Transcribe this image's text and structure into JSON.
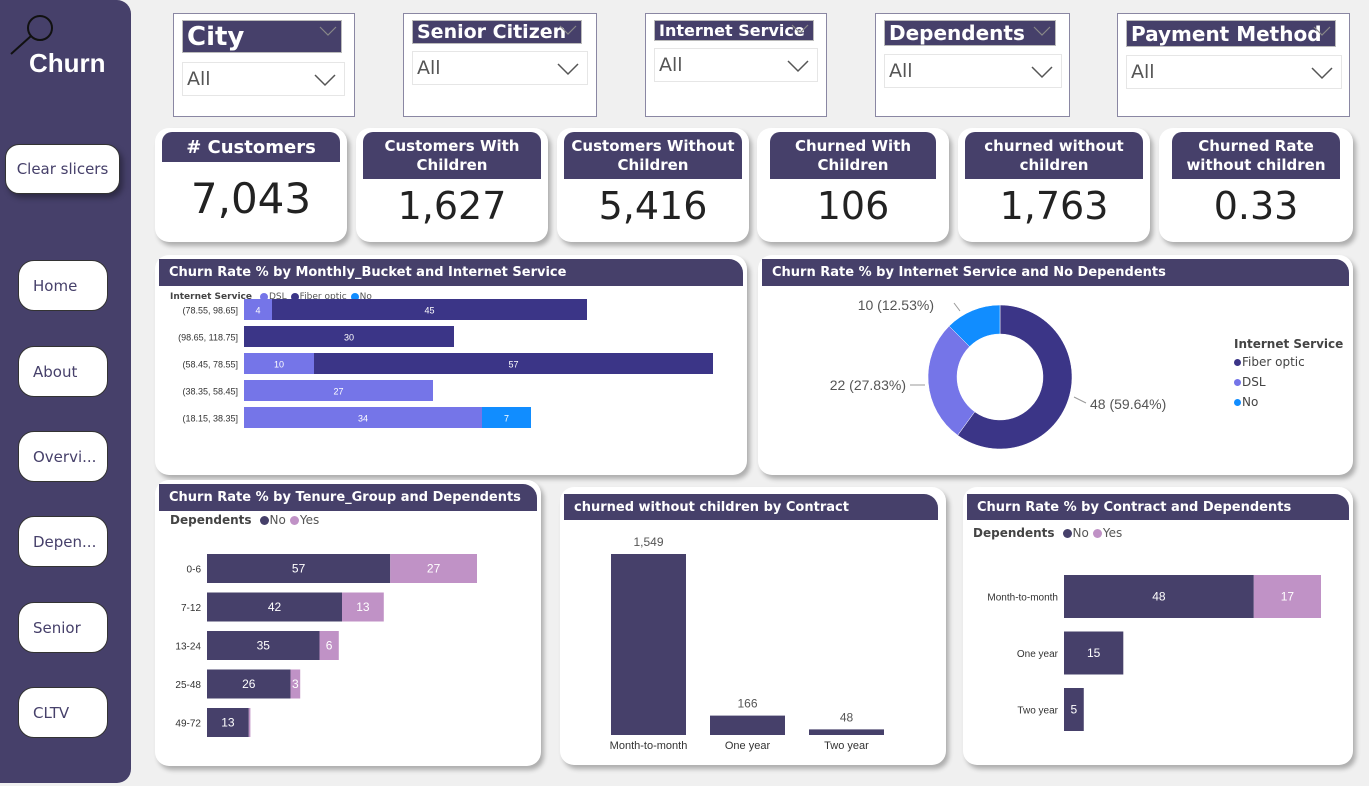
{
  "sidebar": {
    "title": "Churn",
    "clear_label": "Clear slicers",
    "nav": [
      {
        "label": "Home"
      },
      {
        "label": "About"
      },
      {
        "label": "Overvi..."
      },
      {
        "label": "Depen..."
      },
      {
        "label": "Senior"
      },
      {
        "label": "CLTV"
      }
    ]
  },
  "slicers": [
    {
      "title": "City",
      "value": "All"
    },
    {
      "title": "Senior Citizen",
      "value": "All"
    },
    {
      "title": "Internet Service",
      "value": "All"
    },
    {
      "title": "Dependents",
      "value": "All"
    },
    {
      "title": "Payment Method",
      "value": "All"
    }
  ],
  "cards": [
    {
      "title": "# Customers",
      "value": "7,043"
    },
    {
      "title": "Customers With Children",
      "value": "1,627"
    },
    {
      "title": "Customers Without Children",
      "value": "5,416"
    },
    {
      "title": "Churned With Children",
      "value": "106"
    },
    {
      "title": "churned without children",
      "value": "1,763"
    },
    {
      "title": "Churned Rate without children",
      "value": "0.33"
    }
  ],
  "colors": {
    "primary": "#46406a",
    "dsl": "#7575e8",
    "fiber": "#3b3587",
    "no_internet": "#118dff",
    "dep_no": "#46406a",
    "dep_yes": "#c092c6"
  },
  "chart_data": [
    {
      "id": "monthly",
      "type": "bar",
      "orientation": "horizontal",
      "stacked": true,
      "title": "Churn Rate % by Monthly_Bucket and Internet Service",
      "legend_title": "Internet Service",
      "legend_position": "top-left",
      "categories": [
        "(78.55, 98.65]",
        "(98.65, 118.75]",
        "(58.45, 78.55]",
        "(38.35, 58.45]",
        "(18.15, 38.35]"
      ],
      "series": [
        {
          "name": "DSL",
          "color": "#7575e8",
          "values": [
            4,
            0,
            10,
            27,
            34
          ]
        },
        {
          "name": "Fiber optic",
          "color": "#3b3587",
          "values": [
            45,
            30,
            57,
            0,
            0
          ]
        },
        {
          "name": "No",
          "color": "#118dff",
          "values": [
            0,
            0,
            0,
            0,
            7
          ]
        }
      ],
      "xlim": [
        0,
        67
      ]
    },
    {
      "id": "donut",
      "type": "pie",
      "donut": true,
      "title": "Churn Rate % by Internet Service and No Dependents",
      "legend_title": "Internet Service",
      "legend_position": "right",
      "slices": [
        {
          "name": "Fiber optic",
          "value": 48,
          "percent": 59.64,
          "label": "48 (59.64%)",
          "color": "#3b3587"
        },
        {
          "name": "DSL",
          "value": 22,
          "percent": 27.83,
          "label": "22 (27.83%)",
          "color": "#7575e8"
        },
        {
          "name": "No",
          "value": 10,
          "percent": 12.53,
          "label": "10 (12.53%)",
          "color": "#118dff"
        }
      ]
    },
    {
      "id": "tenure",
      "type": "bar",
      "orientation": "horizontal",
      "stacked": true,
      "title": "Churn Rate % by Tenure_Group and Dependents",
      "legend_title": "Dependents",
      "legend_position": "top-left",
      "categories": [
        "0-6",
        "7-12",
        "13-24",
        "25-48",
        "49-72"
      ],
      "series": [
        {
          "name": "No",
          "color": "#46406a",
          "values": [
            57,
            42,
            35,
            26,
            13
          ]
        },
        {
          "name": "Yes",
          "color": "#c092c6",
          "values": [
            27,
            13,
            6,
            3,
            0.5
          ]
        }
      ],
      "labels_yes": [
        "27",
        "13",
        "6",
        "3",
        ""
      ],
      "xlim": [
        0,
        84
      ]
    },
    {
      "id": "contract",
      "type": "bar",
      "orientation": "vertical",
      "title": "churned without children by Contract",
      "categories": [
        "Month-to-month",
        "One year",
        "Two year"
      ],
      "values": [
        1549,
        166,
        48
      ],
      "labels": [
        "1,549",
        "166",
        "48"
      ],
      "ylim": [
        0,
        1549
      ]
    },
    {
      "id": "contract_dep",
      "type": "bar",
      "orientation": "horizontal",
      "stacked": true,
      "title": "Churn Rate % by Contract and Dependents",
      "legend_title": "Dependents",
      "legend_position": "top-left",
      "categories": [
        "Month-to-month",
        "One year",
        "Two year"
      ],
      "series": [
        {
          "name": "No",
          "color": "#46406a",
          "values": [
            48,
            15,
            5
          ]
        },
        {
          "name": "Yes",
          "color": "#c092c6",
          "values": [
            17,
            0,
            0
          ]
        }
      ],
      "xlim": [
        0,
        65
      ]
    }
  ]
}
